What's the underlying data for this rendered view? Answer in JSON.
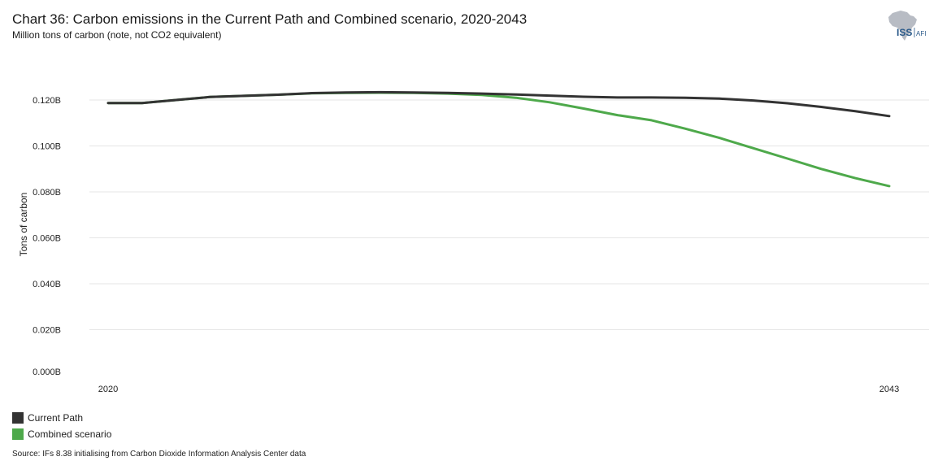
{
  "header": {
    "title": "Chart 36: Carbon emissions in the Current Path and Combined scenario, 2020-2043",
    "subtitle": "Million tons of carbon (note, not CO2 equivalent)"
  },
  "logo": {
    "text_main": "ISS",
    "text_sub": "AFI",
    "icon": "africa-map-icon"
  },
  "footer": {
    "source": "Source: IFs 8.38 initialising from Carbon Dioxide Information Analysis Center data"
  },
  "colors": {
    "current_path": "#333333",
    "combined": "#4ea94b",
    "grid": "#e6e6e6"
  },
  "chart_data": {
    "type": "line",
    "ylabel": "Tons of carbon",
    "xlabel": "",
    "x": [
      2020,
      2021,
      2022,
      2023,
      2024,
      2025,
      2026,
      2027,
      2028,
      2029,
      2030,
      2031,
      2032,
      2033,
      2034,
      2035,
      2036,
      2037,
      2038,
      2039,
      2040,
      2041,
      2042,
      2043
    ],
    "x_ticks": [
      "2020",
      "2043"
    ],
    "y_ticks": [
      "0.000B",
      "0.020B",
      "0.040B",
      "0.060B",
      "0.080B",
      "0.100B",
      "0.120B"
    ],
    "ylim": [
      0,
      0.12
    ],
    "series": [
      {
        "name": "Current Path",
        "values": [
          0.1187,
          0.1187,
          0.12,
          0.1213,
          0.1218,
          0.1223,
          0.123,
          0.1233,
          0.1234,
          0.1233,
          0.1231,
          0.1228,
          0.1224,
          0.1219,
          0.1214,
          0.1211,
          0.1211,
          0.121,
          0.1206,
          0.1198,
          0.1186,
          0.117,
          0.1151,
          0.113
        ]
      },
      {
        "name": "Combined scenario",
        "values": [
          0.1187,
          0.1187,
          0.12,
          0.1213,
          0.1218,
          0.1223,
          0.1229,
          0.1231,
          0.1232,
          0.1231,
          0.1228,
          0.1222,
          0.121,
          0.119,
          0.1163,
          0.1134,
          0.1112,
          0.1075,
          0.1035,
          0.099,
          0.0945,
          0.09,
          0.086,
          0.0825
        ]
      }
    ],
    "legend_position": "bottom-left",
    "grid": true
  }
}
